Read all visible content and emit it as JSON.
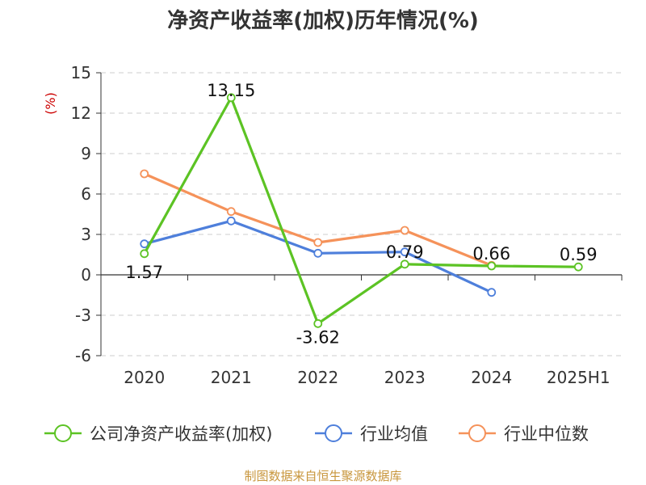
{
  "title": "净资产收益率(加权)历年情况(%)",
  "source": "制图数据来自恒生聚源数据库",
  "chart_data": {
    "type": "line",
    "title": "净资产收益率(加权)历年情况(%)",
    "ylabel": "(%)",
    "categories": [
      "2020",
      "2021",
      "2022",
      "2023",
      "2024",
      "2025H1"
    ],
    "ylim": [
      -6,
      15
    ],
    "yticks": [
      15,
      12,
      9,
      6,
      3,
      0,
      -3,
      -6
    ],
    "ytick_labels": [
      "15",
      "12",
      "9",
      "6",
      "3",
      "0",
      "-3",
      "-6"
    ],
    "grid": true,
    "legend_position": "bottom",
    "series": [
      {
        "name": "公司净资产收益率(加权)",
        "color": "#5cc324",
        "values": [
          1.57,
          13.15,
          -3.62,
          0.79,
          0.66,
          0.59
        ],
        "labels": [
          "1.57",
          "13.15",
          "-3.62",
          "0.79",
          "0.66",
          "0.59"
        ]
      },
      {
        "name": "行业均值",
        "color": "#4e7fdb",
        "values": [
          2.3,
          4.0,
          1.6,
          1.7,
          -1.3,
          null
        ]
      },
      {
        "name": "行业中位数",
        "color": "#f5925a",
        "values": [
          7.5,
          4.7,
          2.4,
          3.3,
          0.7,
          null
        ]
      }
    ]
  }
}
